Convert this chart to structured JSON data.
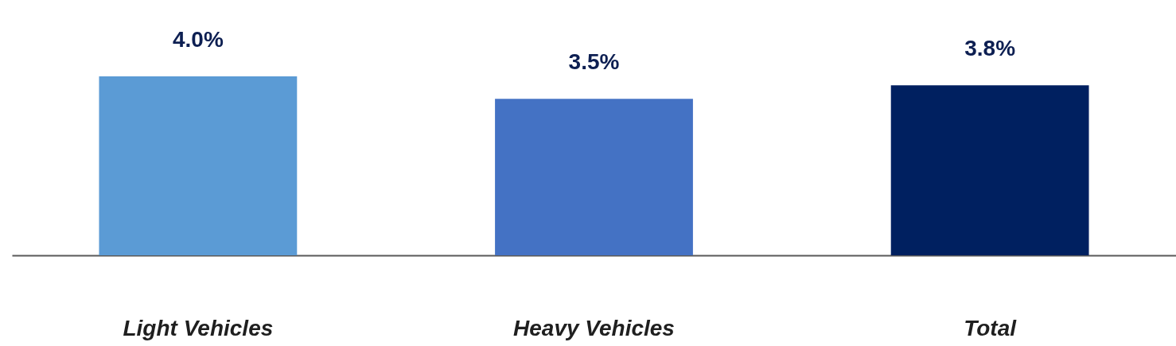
{
  "chart_data": {
    "type": "bar",
    "categories": [
      "Light Vehicles",
      "Heavy Vehicles",
      "Total"
    ],
    "values": [
      4.0,
      3.5,
      3.8
    ],
    "colors": [
      "#5b9bd5",
      "#4472c4",
      "#002060"
    ],
    "value_labels": [
      "4.0%",
      "3.5%",
      "3.8%"
    ],
    "tick_labels": "x"
  }
}
